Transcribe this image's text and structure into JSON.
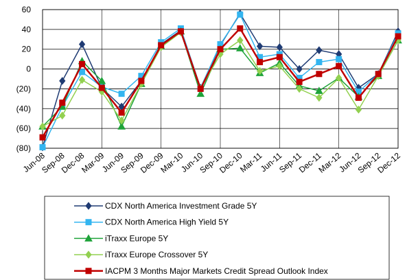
{
  "chart_data": {
    "type": "line",
    "categories": [
      "Jun-08",
      "Sep-08",
      "Dec-08",
      "Mar-09",
      "Jun-09",
      "Sep-09",
      "Dec-09",
      "Mar-10",
      "Jun-10",
      "Sep-10",
      "Dec-10",
      "Mar-11",
      "Jun-11",
      "Sep-11",
      "Dec-11",
      "Mar-12",
      "Jun-12",
      "Sep-12",
      "Dec-12"
    ],
    "series": [
      {
        "name": "CDX North America Investment Grade 5Y",
        "color": "#1f3b73",
        "marker": "diamond",
        "values": [
          -79,
          -12,
          25,
          -19,
          -38,
          -12,
          25,
          39,
          -19,
          24,
          56,
          23,
          22,
          0,
          19,
          15,
          -19,
          -5,
          38
        ]
      },
      {
        "name": "CDX North America High Yield 5Y",
        "color": "#33b5f0",
        "marker": "square",
        "values": [
          -79,
          -38,
          -3,
          -18,
          -25,
          -7,
          27,
          41,
          -19,
          25,
          55,
          12,
          15,
          -9,
          7,
          10,
          -23,
          -5,
          36
        ]
      },
      {
        "name": "iTraxx Europe 5Y",
        "color": "#1fa33a",
        "marker": "triangle",
        "values": [
          -58,
          -38,
          8,
          -12,
          -58,
          -15,
          23,
          38,
          -25,
          20,
          21,
          -4,
          6,
          -17,
          -22,
          -9,
          -28,
          -7,
          29
        ]
      },
      {
        "name": "iTraxx Europe Crossover 5Y",
        "color": "#92d050",
        "marker": "diamond",
        "values": [
          -58,
          -47,
          -11,
          -23,
          -52,
          -15,
          22,
          37,
          -20,
          15,
          29,
          -2,
          3,
          -20,
          -29,
          -9,
          -41,
          -7,
          29
        ]
      },
      {
        "name": "IACPM 3 Months Major Markets Credit Spread Outlook Index",
        "color": "#c00000",
        "marker": "square",
        "values": [
          -69,
          -34,
          5,
          -19,
          -44,
          -12,
          24,
          38,
          -20,
          20,
          41,
          7,
          12,
          -13,
          -5,
          3,
          -29,
          -5,
          33
        ]
      }
    ],
    "ylim": [
      -80,
      60
    ],
    "yticks": [
      {
        "value": -80,
        "label": "(80)"
      },
      {
        "value": -60,
        "label": "(60)"
      },
      {
        "value": -40,
        "label": "(40)"
      },
      {
        "value": -20,
        "label": "(20)"
      },
      0,
      20,
      40,
      60
    ],
    "grid": true,
    "legend": "bottom"
  }
}
